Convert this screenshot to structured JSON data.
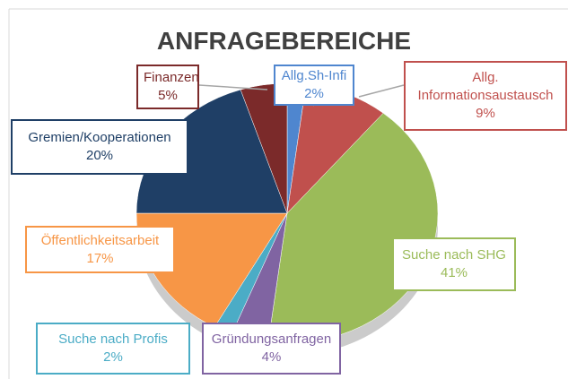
{
  "chart_data": {
    "type": "pie",
    "title": "ANFRAGEBEREICHE",
    "categories": [
      "Allg.Sh-Infi",
      "Allg. Informationsaustausch",
      "Suche nach SHG",
      "Gründungsanfragen",
      "Suche nach Profis",
      "Öffentlichkeitsarbeit",
      "Gremien/Kooperationen",
      "Finanzen"
    ],
    "values": [
      2,
      9,
      41,
      4,
      2,
      17,
      20,
      5
    ],
    "value_labels": [
      "2%",
      "9%",
      "41%",
      "4%",
      "2%",
      "17%",
      "20%",
      "5%"
    ],
    "colors": [
      "#4f86cf",
      "#c0504d",
      "#9bbb59",
      "#8064a2",
      "#4bacc6",
      "#f79646",
      "#1f3f66",
      "#7b2a2a"
    ]
  }
}
